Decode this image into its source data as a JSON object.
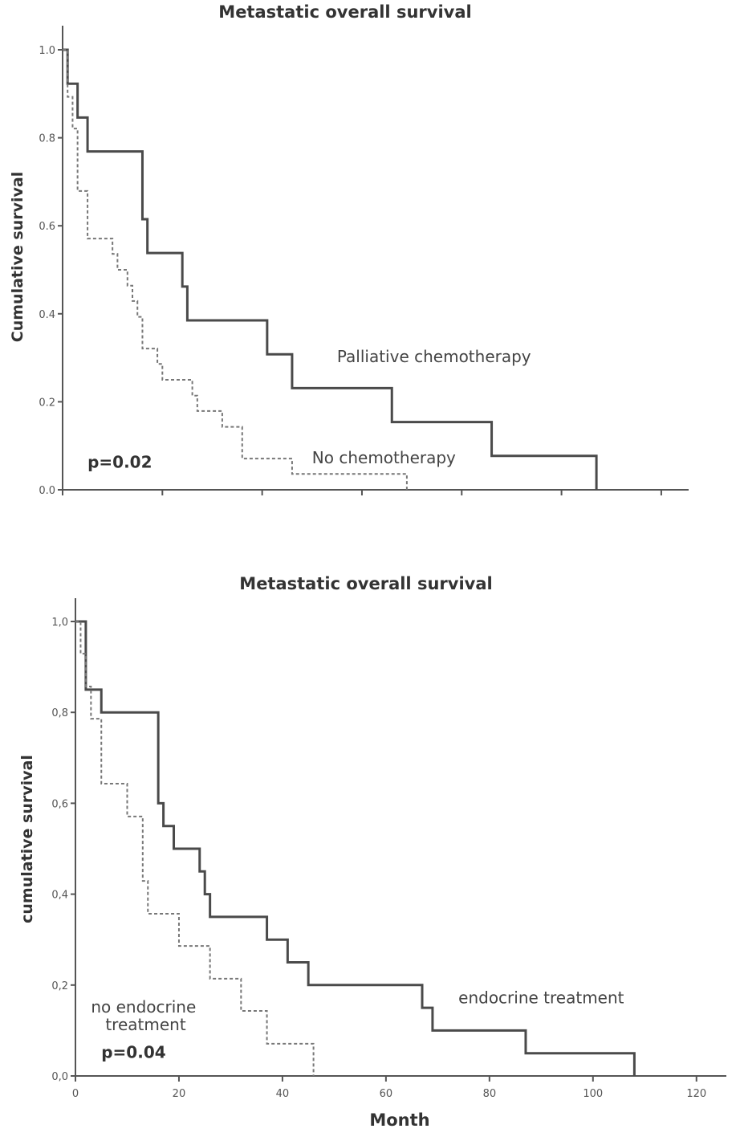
{
  "chart_data": [
    {
      "type": "line",
      "subtype": "kaplan-meier step",
      "title": "Metastatic overall survival",
      "xlabel": "",
      "ylabel": "Cumulative survival",
      "xlim": [
        0,
        125
      ],
      "ylim": [
        0,
        1.0
      ],
      "x_ticks": [
        0,
        20,
        40,
        60,
        80,
        100,
        120
      ],
      "x_tick_labels": [],
      "y_ticks": [
        0.0,
        0.2,
        0.4,
        0.6,
        0.8,
        1.0
      ],
      "y_tick_labels": [
        "0.0",
        "0.2",
        "0.4",
        "0.6",
        "0.8",
        "1.0"
      ],
      "series": [
        {
          "name": "Palliative chemotherapy",
          "style": "solid",
          "x": [
            0,
            1,
            3,
            5,
            16,
            17,
            24,
            25,
            41,
            46,
            66,
            86,
            107
          ],
          "y": [
            1.0,
            0.923,
            0.846,
            0.769,
            0.615,
            0.538,
            0.462,
            0.385,
            0.308,
            0.231,
            0.154,
            0.077,
            0.0
          ]
        },
        {
          "name": "No chemotherapy",
          "style": "dashed",
          "x": [
            0,
            1,
            2,
            3,
            5,
            10,
            11,
            13,
            14,
            15,
            16,
            19,
            20,
            26,
            27,
            32,
            36,
            46,
            69
          ],
          "y": [
            1.0,
            0.893,
            0.821,
            0.679,
            0.571,
            0.536,
            0.5,
            0.464,
            0.429,
            0.393,
            0.321,
            0.286,
            0.25,
            0.214,
            0.179,
            0.143,
            0.071,
            0.036,
            0.0
          ]
        }
      ],
      "annotations": [
        {
          "text": "Palliative chemotherapy",
          "x": 55,
          "y": 0.29
        },
        {
          "text": "No chemotherapy",
          "x": 50,
          "y": 0.06
        },
        {
          "text": "p=0.02",
          "x": 5,
          "y": 0.05
        }
      ]
    },
    {
      "type": "line",
      "subtype": "kaplan-meier step",
      "title": "Metastatic overall survival",
      "xlabel": "Month",
      "ylabel": "cumulative survival",
      "xlim": [
        0,
        125
      ],
      "ylim": [
        0,
        1.0
      ],
      "x_ticks": [
        0,
        20,
        40,
        60,
        80,
        100,
        120
      ],
      "x_tick_labels": [
        "0",
        "20",
        "40",
        "60",
        "80",
        "100",
        "120"
      ],
      "y_ticks": [
        0.0,
        0.2,
        0.4,
        0.6,
        0.8,
        1.0
      ],
      "y_tick_labels": [
        "0,0",
        "0,2",
        "0,4",
        "0,6",
        "0,8",
        "1,0"
      ],
      "series": [
        {
          "name": "endocrine treatment",
          "style": "solid",
          "x": [
            0,
            2,
            5,
            16,
            17,
            19,
            24,
            25,
            26,
            37,
            41,
            45,
            67,
            69,
            87,
            108
          ],
          "y": [
            1.0,
            0.85,
            0.8,
            0.6,
            0.55,
            0.5,
            0.45,
            0.4,
            0.35,
            0.3,
            0.25,
            0.2,
            0.15,
            0.1,
            0.05,
            0.0
          ]
        },
        {
          "name": "no endocrine treatment",
          "style": "dashed",
          "x": [
            0,
            1,
            2,
            3,
            5,
            10,
            13,
            14,
            20,
            26,
            32,
            37,
            46
          ],
          "y": [
            1.0,
            0.929,
            0.857,
            0.786,
            0.643,
            0.571,
            0.429,
            0.357,
            0.286,
            0.214,
            0.143,
            0.071,
            0.0
          ]
        }
      ],
      "annotations": [
        {
          "text": "endocrine treatment",
          "x": 74,
          "y": 0.16
        },
        {
          "text": "no endocrine treatment",
          "x": 3,
          "y": 0.14
        },
        {
          "text": "p=0.04",
          "x": 5,
          "y": 0.04
        }
      ]
    }
  ]
}
